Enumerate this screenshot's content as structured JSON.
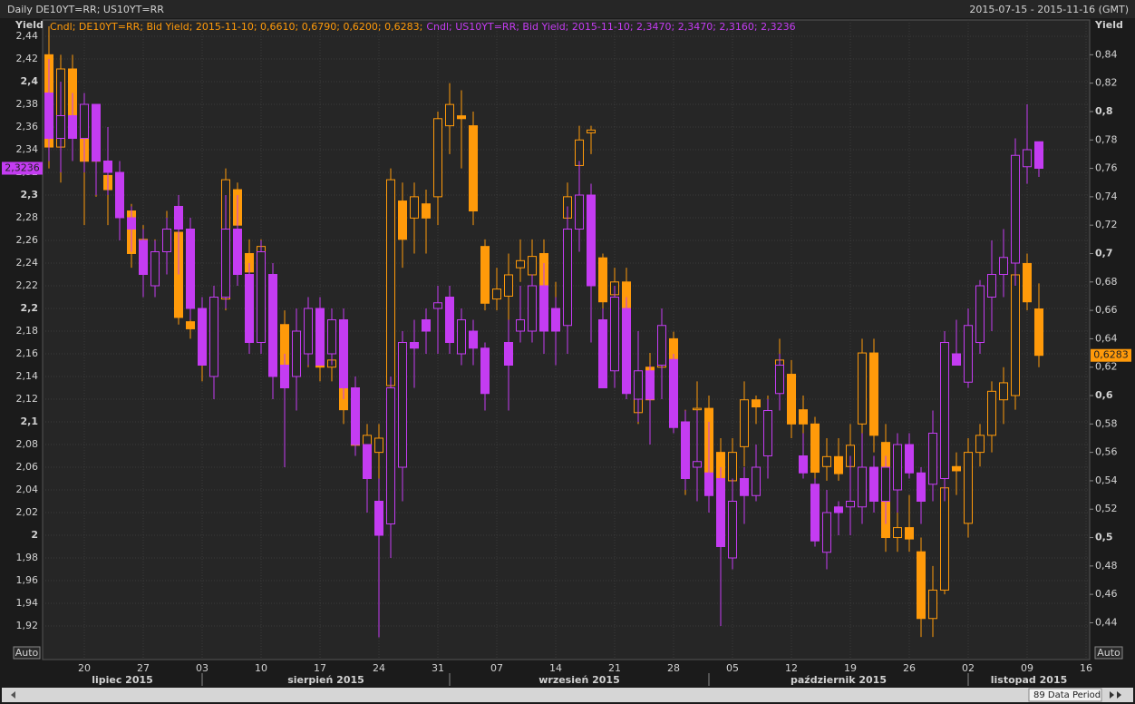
{
  "chart_data": {
    "type": "candlestick",
    "title": "Daily DE10YT=RR; US10YT=RR",
    "range_label": "2015-07-15 - 2015-11-16 (GMT)",
    "y_label": "Yield",
    "y2_label": "Yield",
    "auto_label": "Auto",
    "auto2_label": "Auto",
    "period_label": "89 Data Period",
    "grid": true,
    "categories": [
      "2015-07-15",
      "2015-07-16",
      "2015-07-17",
      "2015-07-20",
      "2015-07-21",
      "2015-07-22",
      "2015-07-23",
      "2015-07-24",
      "2015-07-27",
      "2015-07-28",
      "2015-07-29",
      "2015-07-30",
      "2015-07-31",
      "2015-08-03",
      "2015-08-04",
      "2015-08-05",
      "2015-08-06",
      "2015-08-07",
      "2015-08-10",
      "2015-08-11",
      "2015-08-12",
      "2015-08-13",
      "2015-08-14",
      "2015-08-17",
      "2015-08-18",
      "2015-08-19",
      "2015-08-20",
      "2015-08-21",
      "2015-08-24",
      "2015-08-25",
      "2015-08-26",
      "2015-08-27",
      "2015-08-28",
      "2015-08-31",
      "2015-09-01",
      "2015-09-02",
      "2015-09-03",
      "2015-09-04",
      "2015-09-07",
      "2015-09-08",
      "2015-09-09",
      "2015-09-10",
      "2015-09-11",
      "2015-09-14",
      "2015-09-15",
      "2015-09-16",
      "2015-09-17",
      "2015-09-18",
      "2015-09-21",
      "2015-09-22",
      "2015-09-23",
      "2015-09-24",
      "2015-09-25",
      "2015-09-28",
      "2015-09-29",
      "2015-09-30",
      "2015-10-01",
      "2015-10-02",
      "2015-10-05",
      "2015-10-06",
      "2015-10-07",
      "2015-10-08",
      "2015-10-09",
      "2015-10-12",
      "2015-10-13",
      "2015-10-14",
      "2015-10-15",
      "2015-10-16",
      "2015-10-19",
      "2015-10-20",
      "2015-10-21",
      "2015-10-22",
      "2015-10-23",
      "2015-10-26",
      "2015-10-27",
      "2015-10-28",
      "2015-10-29",
      "2015-10-30",
      "2015-11-02",
      "2015-11-03",
      "2015-11-04",
      "2015-11-05",
      "2015-11-06",
      "2015-11-09",
      "2015-11-10"
    ],
    "xlim": [
      "2015-07-15",
      "2015-11-16"
    ],
    "xticks": [
      {
        "value": "2015-07-20",
        "label": "20"
      },
      {
        "value": "2015-07-27",
        "label": "27"
      },
      {
        "value": "2015-08-03",
        "label": "03"
      },
      {
        "value": "2015-08-10",
        "label": "10"
      },
      {
        "value": "2015-08-17",
        "label": "17"
      },
      {
        "value": "2015-08-24",
        "label": "24"
      },
      {
        "value": "2015-08-31",
        "label": "31"
      },
      {
        "value": "2015-09-07",
        "label": "07"
      },
      {
        "value": "2015-09-14",
        "label": "14"
      },
      {
        "value": "2015-09-21",
        "label": "21"
      },
      {
        "value": "2015-09-28",
        "label": "28"
      },
      {
        "value": "2015-10-05",
        "label": "05"
      },
      {
        "value": "2015-10-12",
        "label": "12"
      },
      {
        "value": "2015-10-19",
        "label": "19"
      },
      {
        "value": "2015-10-26",
        "label": "26"
      },
      {
        "value": "2015-11-02",
        "label": "02"
      },
      {
        "value": "2015-11-09",
        "label": "09"
      },
      {
        "value": "2015-11-16",
        "label": "16"
      }
    ],
    "months": [
      {
        "value": "2015-07",
        "label": "lipiec 2015"
      },
      {
        "value": "2015-08",
        "label": "sierpień 2015"
      },
      {
        "value": "2015-09",
        "label": "wrzesień 2015"
      },
      {
        "value": "2015-10",
        "label": "październik 2015"
      },
      {
        "value": "2015-11",
        "label": "listopad 2015"
      }
    ],
    "ylim": [
      1.8904,
      2.4544
    ],
    "yticks": [
      {
        "value": 1.92,
        "label": "1,92"
      },
      {
        "value": 1.94,
        "label": "1,94"
      },
      {
        "value": 1.96,
        "label": "1,96"
      },
      {
        "value": 1.98,
        "label": "1,98"
      },
      2,
      {
        "value": 2.02,
        "label": "2,02"
      },
      {
        "value": 2.04,
        "label": "2,04"
      },
      {
        "value": 2.06,
        "label": "2,06"
      },
      {
        "value": 2.08,
        "label": "2,08"
      },
      {
        "value": 2.1,
        "label": "2,1"
      },
      {
        "value": 2.12,
        "label": "2,12"
      },
      {
        "value": 2.14,
        "label": "2,14"
      },
      {
        "value": 2.16,
        "label": "2,16"
      },
      {
        "value": 2.18,
        "label": "2,18"
      },
      {
        "value": 2.2,
        "label": "2,2"
      },
      {
        "value": 2.22,
        "label": "2,22"
      },
      {
        "value": 2.24,
        "label": "2,24"
      },
      {
        "value": 2.26,
        "label": "2,26"
      },
      {
        "value": 2.28,
        "label": "2,28"
      },
      {
        "value": 2.3,
        "label": "2,3"
      },
      {
        "value": 2.32,
        "label": "2,32"
      },
      {
        "value": 2.34,
        "label": "2,34"
      },
      {
        "value": 2.36,
        "label": "2,36"
      },
      {
        "value": 2.38,
        "label": "2,38"
      },
      {
        "value": 2.4,
        "label": "2,4"
      },
      {
        "value": 2.42,
        "label": "2,42"
      },
      {
        "value": 2.44,
        "label": "2,44"
      }
    ],
    "y2lim": [
      0.4141,
      0.8645
    ],
    "y2ticks": [
      {
        "value": 0.44,
        "label": "0,44"
      },
      {
        "value": 0.46,
        "label": "0,46"
      },
      {
        "value": 0.48,
        "label": "0,48"
      },
      {
        "value": 0.5,
        "label": "0,5"
      },
      {
        "value": 0.52,
        "label": "0,52"
      },
      {
        "value": 0.54,
        "label": "0,54"
      },
      {
        "value": 0.56,
        "label": "0,56"
      },
      {
        "value": 0.58,
        "label": "0,58"
      },
      {
        "value": 0.6,
        "label": "0,6"
      },
      {
        "value": 0.62,
        "label": "0,62"
      },
      {
        "value": 0.64,
        "label": "0,64"
      },
      {
        "value": 0.66,
        "label": "0,66"
      },
      {
        "value": 0.68,
        "label": "0,68"
      },
      {
        "value": 0.7,
        "label": "0,7"
      },
      {
        "value": 0.72,
        "label": "0,72"
      },
      {
        "value": 0.74,
        "label": "0,74"
      },
      {
        "value": 0.76,
        "label": "0,76"
      },
      {
        "value": 0.78,
        "label": "0,78"
      },
      {
        "value": 0.8,
        "label": "0,8"
      },
      {
        "value": 0.82,
        "label": "0,82"
      },
      {
        "value": 0.84,
        "label": "0,84"
      }
    ],
    "series": [
      {
        "name": "DE10YT=RR",
        "color": "#ff9a0a",
        "axis": "y2",
        "legend": "Cndl; DE10YT=RR; Bid Yield; 2015-11-10; 0,6610; 0,6790; 0,6200; 0,6283;",
        "last_label": "0,6283",
        "open": [
          0.84,
          0.775,
          0.83,
          0.8,
          0.78,
          0.755,
          0.745,
          0.73,
          0.7,
          0.69,
          0.705,
          0.715,
          0.652,
          0.63,
          0.632,
          0.668,
          0.745,
          0.7,
          0.662,
          0.68,
          0.65,
          0.625,
          0.63,
          0.64,
          0.62,
          0.625,
          0.59,
          0.565,
          0.56,
          0.607,
          0.737,
          0.725,
          0.735,
          0.74,
          0.79,
          0.797,
          0.79,
          0.705,
          0.668,
          0.67,
          0.69,
          0.685,
          0.7,
          0.652,
          0.725,
          0.762,
          0.785,
          0.697,
          0.671,
          0.68,
          0.588,
          0.62,
          0.62,
          0.64,
          0.58,
          0.59,
          0.591,
          0.56,
          0.54,
          0.564,
          0.597,
          0.583,
          0.615,
          0.615,
          0.59,
          0.58,
          0.55,
          0.557,
          0.55,
          0.58,
          0.63,
          0.567,
          0.5,
          0.507,
          0.49,
          0.443,
          0.463,
          0.55,
          0.51,
          0.56,
          0.572,
          0.597,
          0.6,
          0.693,
          0.661
        ],
        "high": [
          0.86,
          0.84,
          0.84,
          0.81,
          0.79,
          0.76,
          0.76,
          0.735,
          0.72,
          0.71,
          0.73,
          0.72,
          0.66,
          0.65,
          0.66,
          0.76,
          0.75,
          0.71,
          0.71,
          0.69,
          0.66,
          0.66,
          0.66,
          0.65,
          0.65,
          0.63,
          0.6,
          0.58,
          0.58,
          0.76,
          0.75,
          0.75,
          0.745,
          0.8,
          0.82,
          0.815,
          0.8,
          0.71,
          0.69,
          0.7,
          0.71,
          0.71,
          0.71,
          0.68,
          0.75,
          0.79,
          0.79,
          0.7,
          0.69,
          0.69,
          0.63,
          0.63,
          0.66,
          0.645,
          0.59,
          0.61,
          0.6,
          0.57,
          0.57,
          0.61,
          0.6,
          0.6,
          0.64,
          0.625,
          0.6,
          0.585,
          0.57,
          0.57,
          0.58,
          0.64,
          0.64,
          0.58,
          0.52,
          0.53,
          0.5,
          0.48,
          0.54,
          0.56,
          0.57,
          0.58,
          0.61,
          0.62,
          0.72,
          0.7,
          0.679
        ],
        "low": [
          0.76,
          0.75,
          0.77,
          0.72,
          0.74,
          0.72,
          0.73,
          0.69,
          0.68,
          0.68,
          0.69,
          0.65,
          0.64,
          0.61,
          0.6,
          0.66,
          0.7,
          0.68,
          0.64,
          0.64,
          0.6,
          0.61,
          0.62,
          0.61,
          0.61,
          0.58,
          0.56,
          0.55,
          0.44,
          0.58,
          0.69,
          0.7,
          0.7,
          0.72,
          0.77,
          0.76,
          0.72,
          0.66,
          0.66,
          0.65,
          0.68,
          0.67,
          0.67,
          0.64,
          0.7,
          0.74,
          0.77,
          0.66,
          0.65,
          0.64,
          0.58,
          0.57,
          0.61,
          0.62,
          0.53,
          0.57,
          0.52,
          0.5,
          0.53,
          0.55,
          0.58,
          0.57,
          0.6,
          0.57,
          0.57,
          0.53,
          0.54,
          0.54,
          0.54,
          0.57,
          0.56,
          0.49,
          0.49,
          0.49,
          0.43,
          0.43,
          0.46,
          0.53,
          0.5,
          0.55,
          0.56,
          0.58,
          0.59,
          0.66,
          0.62
        ],
        "close": [
          0.775,
          0.83,
          0.795,
          0.765,
          0.765,
          0.745,
          0.75,
          0.7,
          0.71,
          0.7,
          0.715,
          0.655,
          0.647,
          0.635,
          0.636,
          0.752,
          0.72,
          0.687,
          0.705,
          0.65,
          0.615,
          0.64,
          0.635,
          0.62,
          0.625,
          0.59,
          0.565,
          0.572,
          0.57,
          0.752,
          0.71,
          0.74,
          0.725,
          0.795,
          0.805,
          0.795,
          0.73,
          0.665,
          0.675,
          0.685,
          0.695,
          0.698,
          0.675,
          0.658,
          0.74,
          0.78,
          0.787,
          0.666,
          0.68,
          0.66,
          0.617,
          0.597,
          0.645,
          0.623,
          0.545,
          0.591,
          0.533,
          0.54,
          0.56,
          0.597,
          0.592,
          0.589,
          0.625,
          0.58,
          0.58,
          0.546,
          0.557,
          0.545,
          0.565,
          0.63,
          0.572,
          0.5,
          0.507,
          0.499,
          0.443,
          0.463,
          0.535,
          0.547,
          0.56,
          0.572,
          0.603,
          0.609,
          0.685,
          0.666,
          0.6283
        ]
      },
      {
        "name": "US10YT=RR",
        "color": "#c43cf2",
        "axis": "y",
        "legend": "Cndl; US10YT=RR; Bid Yield; 2015-11-10; 2,3470; 2,3470; 2,3160; 2,3236",
        "last_label": "2,3236",
        "open": [
          2.39,
          2.35,
          2.37,
          2.35,
          2.38,
          2.33,
          2.32,
          2.28,
          2.26,
          2.22,
          2.25,
          2.29,
          2.27,
          2.2,
          2.14,
          2.21,
          2.27,
          2.23,
          2.17,
          2.23,
          2.15,
          2.14,
          2.16,
          2.2,
          2.16,
          2.19,
          2.13,
          2.08,
          2.03,
          2.01,
          2.06,
          2.17,
          2.19,
          2.2,
          2.21,
          2.16,
          2.18,
          2.165,
          null,
          2.17,
          2.18,
          2.18,
          2.22,
          2.2,
          2.185,
          2.27,
          2.3,
          2.19,
          2.145,
          2.2,
          2.12,
          2.145,
          2.15,
          2.155,
          2.1,
          2.06,
          2.055,
          2.05,
          1.98,
          2.05,
          2.035,
          2.07,
          2.125,
          null,
          2.07,
          2.045,
          1.985,
          2.025,
          2.025,
          2.025,
          2.06,
          2.03,
          2.04,
          2.08,
          2.055,
          2.045,
          2.05,
          2.16,
          2.135,
          2.17,
          2.21,
          2.23,
          2.24,
          2.325,
          2.347
        ],
        "high": [
          2.42,
          2.4,
          2.39,
          2.39,
          2.38,
          2.36,
          2.33,
          2.29,
          2.27,
          2.26,
          2.28,
          2.3,
          2.28,
          2.21,
          2.22,
          2.3,
          2.3,
          2.24,
          2.26,
          2.24,
          2.16,
          2.2,
          2.21,
          2.21,
          2.2,
          2.2,
          2.14,
          2.08,
          2.05,
          2.14,
          2.18,
          2.19,
          2.2,
          2.22,
          2.22,
          2.2,
          2.19,
          2.17,
          null,
          2.19,
          2.22,
          2.23,
          2.24,
          2.21,
          2.29,
          2.33,
          2.31,
          2.2,
          2.22,
          2.21,
          2.18,
          2.15,
          2.2,
          2.16,
          2.11,
          2.11,
          2.1,
          2.06,
          2.05,
          2.06,
          2.08,
          2.12,
          2.16,
          null,
          2.09,
          2.05,
          2.04,
          2.03,
          2.07,
          2.09,
          2.07,
          2.07,
          2.09,
          2.09,
          2.06,
          2.11,
          2.18,
          2.19,
          2.2,
          2.225,
          2.26,
          2.27,
          2.35,
          2.38,
          2.347
        ],
        "low": [
          2.33,
          2.32,
          2.33,
          2.32,
          2.3,
          2.3,
          2.26,
          2.25,
          2.21,
          2.21,
          2.23,
          2.23,
          2.19,
          2.15,
          2.12,
          2.2,
          2.22,
          2.16,
          2.16,
          2.12,
          2.06,
          2.11,
          2.15,
          2.15,
          2.15,
          2.12,
          2.07,
          2.02,
          1.91,
          1.98,
          2.03,
          2.13,
          2.16,
          2.16,
          2.16,
          2.15,
          2.15,
          2.11,
          null,
          2.11,
          2.17,
          2.17,
          2.16,
          2.15,
          2.16,
          2.25,
          2.17,
          2.13,
          2.13,
          2.12,
          2.1,
          2.08,
          2.12,
          2.09,
          2.04,
          2.03,
          2.02,
          1.92,
          1.97,
          2.01,
          2.03,
          2.05,
          2.11,
          null,
          2.05,
          1.99,
          1.97,
          2.0,
          2.0,
          2.01,
          2.02,
          2.01,
          2.02,
          2.05,
          2.01,
          2.03,
          2.03,
          2.15,
          2.13,
          2.16,
          2.18,
          2.21,
          2.22,
          2.31,
          2.316
        ],
        "close": [
          2.35,
          2.37,
          2.35,
          2.38,
          2.33,
          2.32,
          2.28,
          2.27,
          2.23,
          2.25,
          2.27,
          2.27,
          2.2,
          2.15,
          2.21,
          2.27,
          2.23,
          2.17,
          2.25,
          2.14,
          2.13,
          2.18,
          2.2,
          2.15,
          2.19,
          2.13,
          2.08,
          2.05,
          2.0,
          2.13,
          2.17,
          2.165,
          2.18,
          2.205,
          2.17,
          2.19,
          2.165,
          2.125,
          null,
          2.15,
          2.19,
          2.22,
          2.18,
          2.18,
          2.27,
          2.3,
          2.22,
          2.13,
          2.21,
          2.125,
          2.145,
          2.12,
          2.185,
          2.095,
          2.05,
          2.065,
          2.035,
          1.99,
          2.03,
          2.035,
          2.06,
          2.11,
          2.15,
          null,
          2.055,
          1.995,
          2.02,
          2.02,
          2.03,
          2.06,
          2.03,
          2.06,
          2.08,
          2.055,
          2.03,
          2.09,
          2.17,
          2.15,
          2.185,
          2.22,
          2.23,
          2.245,
          2.335,
          2.34,
          2.3236
        ]
      }
    ]
  }
}
